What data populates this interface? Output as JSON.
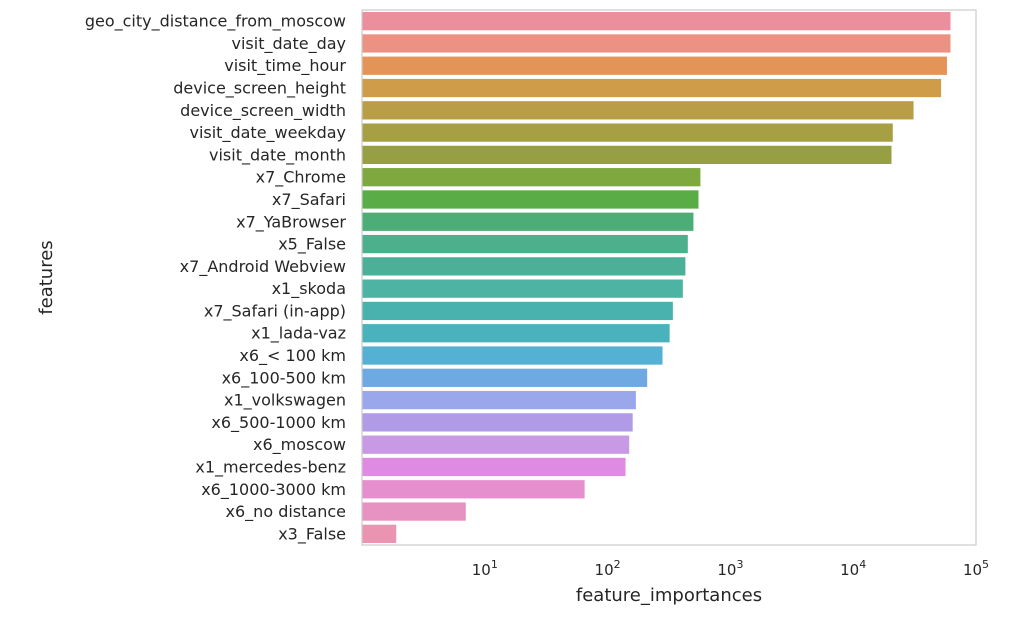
{
  "chart_data": {
    "type": "bar",
    "orientation": "horizontal",
    "title": "",
    "xlabel": "feature_importances",
    "ylabel": "features",
    "xscale": "log",
    "xlim": [
      1,
      100000
    ],
    "xticks": [
      {
        "value": 10,
        "base": "10",
        "exp": "1"
      },
      {
        "value": 100,
        "base": "10",
        "exp": "2"
      },
      {
        "value": 1000,
        "base": "10",
        "exp": "3"
      },
      {
        "value": 10000,
        "base": "10",
        "exp": "4"
      },
      {
        "value": 100000,
        "base": "10",
        "exp": "5"
      }
    ],
    "grid": false,
    "categories": [
      "geo_city_distance_from_moscow",
      "visit_date_day",
      "visit_time_hour",
      "device_screen_height",
      "device_screen_width",
      "visit_date_weekday",
      "visit_date_month",
      "x7_Chrome",
      "x7_Safari",
      "x7_YaBrowser",
      "x5_False",
      "x7_Android Webview",
      "x1_skoda",
      "x7_Safari (in-app)",
      "x1_lada-vaz",
      "x6_< 100 km",
      "x6_100-500 km",
      "x1_volkswagen",
      "x6_500-1000 km",
      "x6_moscow",
      "x1_mercedes-benz",
      "x6_1000-3000 km",
      "x6_no distance",
      "x3_False"
    ],
    "values": [
      62000,
      62000,
      58000,
      52000,
      31000,
      21000,
      20500,
      570,
      550,
      500,
      450,
      430,
      410,
      340,
      320,
      280,
      210,
      170,
      160,
      150,
      140,
      65,
      7,
      1.9
    ],
    "colors": [
      "#ea8f9b",
      "#ec9282",
      "#e49456",
      "#cf9d49",
      "#b99e47",
      "#a79f44",
      "#969f42",
      "#7fa93f",
      "#5aac47",
      "#4cad76",
      "#4db08c",
      "#4cb098",
      "#4db3a3",
      "#49b2af",
      "#4ab2bc",
      "#55b1d3",
      "#6ea9e4",
      "#9aa7ea",
      "#b19be6",
      "#c89ae6",
      "#df8ae3",
      "#e68fcf",
      "#e793c2",
      "#ea94b1"
    ]
  }
}
